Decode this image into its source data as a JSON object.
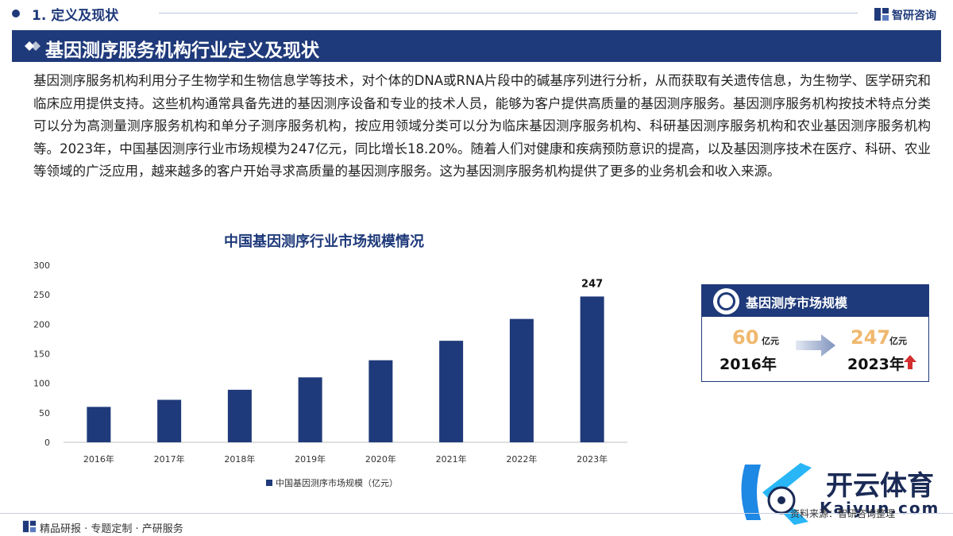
{
  "header": {
    "section_title": "1. 定义及现状",
    "brand_name": "智研咨询"
  },
  "band": {
    "title": "基因测序服务机构行业定义及现状"
  },
  "paragraph": "基因测序服务机构利用分子生物学和生物信息学等技术，对个体的DNA或RNA片段中的碱基序列进行分析，从而获取有关遗传信息，为生物学、医学研究和临床应用提供支持。这些机构通常具备先进的基因测序设备和专业的技术人员，能够为客户提供高质量的基因测序服务。基因测序服务机构按技术特点分类可以分为高测量测序服务机构和单分子测序服务机构，按应用领域分类可以分为临床基因测序服务机构、科研基因测序服务机构和农业基因测序服务机构等。2023年，中国基因测序行业市场规模为247亿元，同比增长18.20%。随着人们对健康和疾病预防意识的提高，以及基因测序技术在医疗、科研、农业等领域的广泛应用，越来越多的客户开始寻求高质量的基因测序服务。这为基因测序服务机构提供了更多的业务机会和收入来源。",
  "chart_data": {
    "type": "bar",
    "title": "中国基因测序行业市场规模情况",
    "categories": [
      "2016年",
      "2017年",
      "2018年",
      "2019年",
      "2020年",
      "2021年",
      "2022年",
      "2023年"
    ],
    "series": [
      {
        "name": "中国基因测序市场规模（亿元）",
        "values": [
          60,
          72,
          89,
          110,
          139,
          172,
          209,
          247
        ]
      }
    ],
    "data_labels": [
      {
        "category": "2023年",
        "text": "247"
      }
    ],
    "ylim": [
      0,
      300
    ],
    "yticks": [
      0,
      50,
      100,
      150,
      200,
      250,
      300
    ],
    "grid": false,
    "legend": "bottom",
    "bar_color": "#1f3a7a"
  },
  "card": {
    "title": "基因测序市场规模",
    "start_value": "60",
    "start_unit": "亿元",
    "start_year": "2016年",
    "end_value": "247",
    "end_unit": "亿元",
    "end_year": "2023年",
    "accent_color": "#f0b86e",
    "up_color": "#d32f2f"
  },
  "footer": {
    "services": "精品研报 · 专题定制 · 产研服务",
    "source": "资料来源：智研咨询整理"
  },
  "overlay": {
    "name": "开云体育",
    "domain": "Kaiyun.com"
  }
}
